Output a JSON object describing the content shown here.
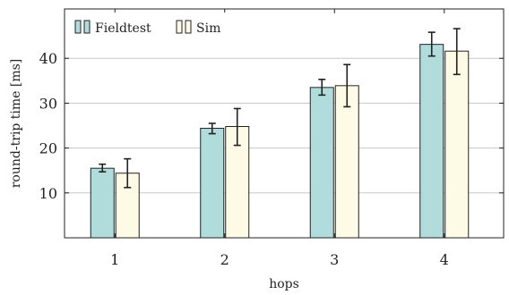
{
  "chart_data": {
    "type": "bar",
    "categories": [
      "1",
      "2",
      "3",
      "4"
    ],
    "series": [
      {
        "name": "Fieldtest",
        "values": [
          15.5,
          24.4,
          33.5,
          43.1
        ],
        "error_low": [
          14.7,
          23.2,
          31.8,
          40.5
        ],
        "error_high": [
          16.4,
          25.5,
          35.3,
          45.8
        ],
        "color": "#b0dcdb"
      },
      {
        "name": "Sim",
        "values": [
          14.4,
          24.8,
          33.9,
          41.6
        ],
        "error_low": [
          11.2,
          20.6,
          29.2,
          36.4
        ],
        "error_high": [
          17.6,
          28.8,
          38.6,
          46.6
        ],
        "color": "#fdfae6"
      }
    ],
    "xlabel": "hops",
    "ylabel": "round-trip time [ms]",
    "yticks": [
      10,
      20,
      30,
      40
    ],
    "ylim": [
      0,
      51
    ],
    "grid": "horizontal",
    "legend_position": "top-left",
    "edge_color": "#222222",
    "grid_color": "#c8c8c8"
  }
}
